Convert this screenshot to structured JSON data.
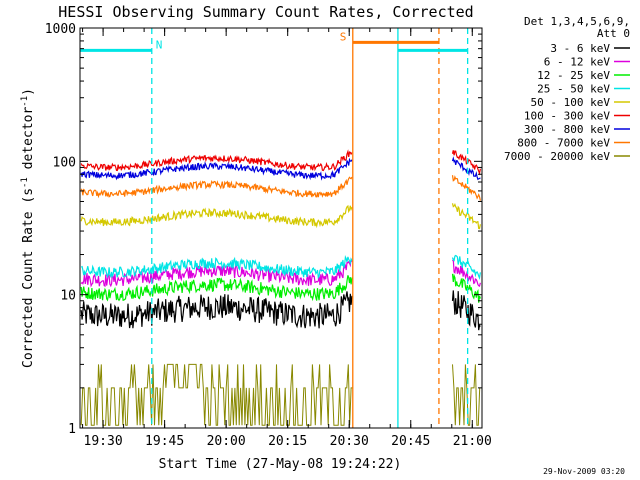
{
  "chart_data": {
    "type": "line",
    "title": "HESSI Observing Summary Count Rates, Corrected",
    "xlabel": "Start Time (27-May-08 19:24:22)",
    "ylabel": "Corrected Count Rate (s",
    "ylabel_sup": "-1",
    "ylabel_mid": " detector",
    "ylabel_end": ")",
    "y_scale": "log",
    "ylim": [
      1,
      1000
    ],
    "xlim_minutes_after_start": [
      0,
      98
    ],
    "x_tick_labels": [
      "19:30",
      "19:45",
      "20:00",
      "20:15",
      "20:30",
      "20:45",
      "21:00"
    ],
    "x_tick_minutes": [
      5.63,
      20.63,
      35.63,
      50.63,
      65.63,
      80.63,
      95.63
    ],
    "y_tick_labels": [
      "1",
      "10",
      "100",
      "1000"
    ],
    "y_tick_values": [
      1,
      10,
      100,
      1000
    ],
    "legend_header": [
      "Det 1,3,4,5,6,9,",
      "Att 0"
    ],
    "legend_position": "right",
    "series": [
      {
        "name": "3 - 6 keV",
        "color": "#000000",
        "level": 7.5
      },
      {
        "name": "6 - 12 keV",
        "color": "#dd00dd",
        "level": 14
      },
      {
        "name": "12 - 25 keV",
        "color": "#00ee00",
        "level": 11
      },
      {
        "name": "25 - 50 keV",
        "color": "#00e5e5",
        "level": 16
      },
      {
        "name": "50 - 100 keV",
        "color": "#d4c800",
        "level": 38
      },
      {
        "name": "100 - 300 keV",
        "color": "#ee0000",
        "level": 98
      },
      {
        "name": "300 - 800 keV",
        "color": "#0000dd",
        "level": 85
      },
      {
        "name": "800 - 7000 keV",
        "color": "#ff7700",
        "level": 62
      },
      {
        "name": "7000 - 20000 keV",
        "color": "#888800",
        "level": 1.8
      }
    ],
    "data_gaps_minutes": [
      [
        66.5,
        90.5
      ]
    ],
    "markers": [
      {
        "label": "N",
        "color": "#00e5e5",
        "start": 0,
        "end": 17.5,
        "y": 680
      },
      {
        "label": "S",
        "color": "#ff7700",
        "start": 66.5,
        "end": 87.5,
        "y": 780
      },
      {
        "label": "",
        "color": "#00e5e5",
        "start": 77.5,
        "end": 94.5,
        "y": 680
      }
    ],
    "vertical_lines": [
      {
        "x": 17.5,
        "color": "#00e5e5",
        "style": "dashed"
      },
      {
        "x": 66.5,
        "color": "#ff7700",
        "style": "solid"
      },
      {
        "x": 77.5,
        "color": "#00e5e5",
        "style": "solid"
      },
      {
        "x": 87.5,
        "color": "#ff7700",
        "style": "dashed"
      },
      {
        "x": 94.5,
        "color": "#00e5e5",
        "style": "dashed"
      }
    ]
  },
  "footer": {
    "timestamp": "29-Nov-2009 03:20"
  }
}
